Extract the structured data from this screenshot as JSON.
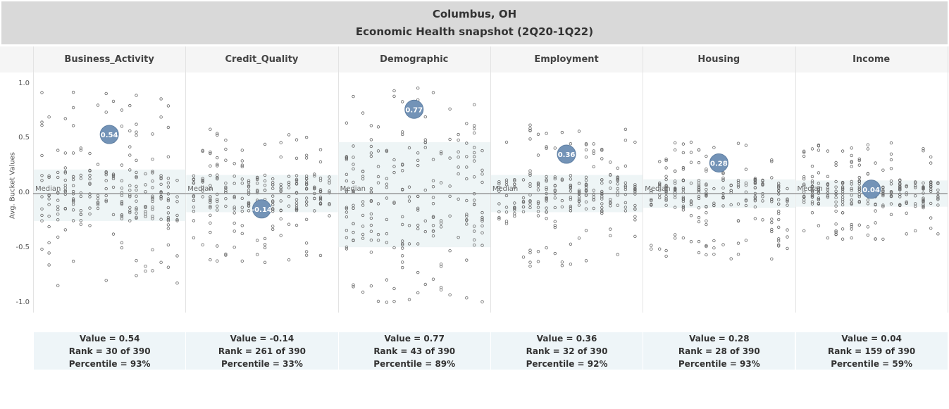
{
  "title": {
    "line1": "Columbus, OH",
    "line2": "Economic Health snapshot (2Q20-1Q22)"
  },
  "chart_data": {
    "type": "scatter",
    "title": "Columbus, OH - Economic Health snapshot (2Q20-1Q22)",
    "ylabel": "Avg. Bucket Values",
    "ylim": [
      -1.05,
      1.05
    ],
    "yticks": [
      "1.0",
      "0.5",
      "0.0",
      "-0.5",
      "-1.0"
    ],
    "ytick_values": [
      1.0,
      0.5,
      0.0,
      -0.5,
      -1.0
    ],
    "median_label": "Median",
    "grid": false,
    "colors": {
      "highlight": "#7393b7",
      "dots": "#666666",
      "band": "#eef5f6",
      "median": "#888888"
    },
    "categories": [
      "Business_Activity",
      "Credit_Quality",
      "Demographic",
      "Employment",
      "Housing",
      "Income"
    ],
    "series": [
      {
        "category": "Business_Activity",
        "value": 0.54,
        "value_label": "0.54",
        "rank": 30,
        "total": 390,
        "percentile": 93,
        "value_text": "Value = 0.54",
        "rank_text": "Rank = 30 of 390",
        "percentile_text": "Percentile = 93%",
        "spread_min": -0.85,
        "spread_max": 0.93,
        "band": [
          -0.25,
          0.22
        ]
      },
      {
        "category": "Credit_Quality",
        "value": -0.14,
        "value_label": "-0.14",
        "rank": 261,
        "total": 390,
        "percentile": 33,
        "value_text": "Value = -0.14",
        "rank_text": "Rank = 261 of 390",
        "percentile_text": "Percentile = 33%",
        "spread_min": -0.63,
        "spread_max": 0.59,
        "band": [
          -0.17,
          0.17
        ]
      },
      {
        "category": "Demographic",
        "value": 0.77,
        "value_label": "0.77",
        "rank": 43,
        "total": 390,
        "percentile": 89,
        "value_text": "Value = 0.77",
        "rank_text": "Rank = 43 of 390",
        "percentile_text": "Percentile = 89%",
        "spread_min": -1.0,
        "spread_max": 1.0,
        "band": [
          -0.49,
          0.47
        ]
      },
      {
        "category": "Employment",
        "value": 0.36,
        "value_label": "0.36",
        "rank": 32,
        "total": 390,
        "percentile": 92,
        "value_text": "Value = 0.36",
        "rank_text": "Rank = 32 of 390",
        "percentile_text": "Percentile = 92%",
        "spread_min": -0.68,
        "spread_max": 0.64,
        "band": [
          -0.17,
          0.17
        ]
      },
      {
        "category": "Housing",
        "value": 0.28,
        "value_label": "0.28",
        "rank": 28,
        "total": 390,
        "percentile": 93,
        "value_text": "Value = 0.28",
        "rank_text": "Rank = 28 of 390",
        "percentile_text": "Percentile = 93%",
        "spread_min": -0.6,
        "spread_max": 0.47,
        "band": [
          -0.13,
          0.13
        ]
      },
      {
        "category": "Income",
        "value": 0.04,
        "value_label": "0.04",
        "rank": 159,
        "total": 390,
        "percentile": 59,
        "value_text": "Value = 0.04",
        "rank_text": "Rank = 159 of 390",
        "percentile_text": "Percentile = 59%",
        "spread_min": -0.42,
        "spread_max": 0.47,
        "band": [
          -0.12,
          0.12
        ]
      }
    ]
  }
}
